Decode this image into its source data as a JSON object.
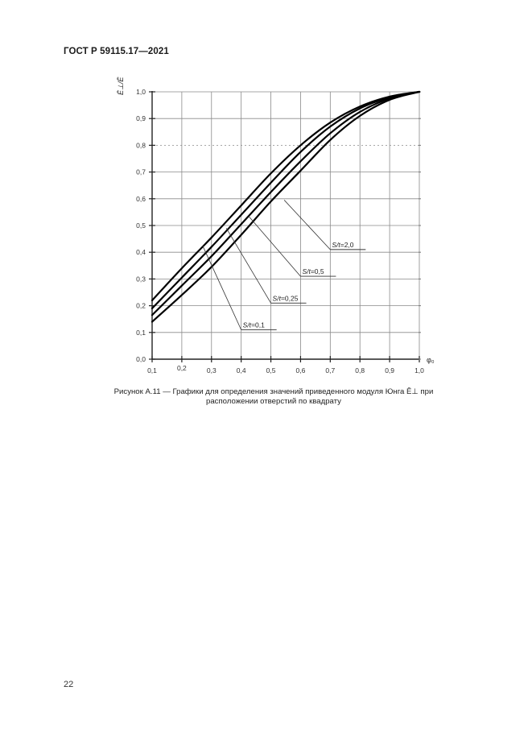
{
  "document": {
    "header": "ГОСТ Р 59115.17—2021",
    "page_number": "22"
  },
  "figure": {
    "caption_line1": "Рисунок А.11 — Графики для определения значений приведенного модуля Юнга Ê⊥ при",
    "caption_line2": "расположении отверстий по квадрату"
  },
  "chart_data": {
    "type": "line",
    "title": "",
    "xlabel": "φ₀",
    "ylabel": "Ē⊥/Ē",
    "xlim": [
      0.1,
      1.0
    ],
    "ylim": [
      0.0,
      1.0
    ],
    "grid": true,
    "legend_position": "leader-line annotations",
    "x_ticks": [
      "0,1",
      "0,2",
      "0,3",
      "0,4",
      "0,5",
      "0,6",
      "0,7",
      "0,8",
      "0,9",
      "1,0"
    ],
    "y_ticks": [
      "0,0",
      "0,1",
      "0,2",
      "0,3",
      "0,4",
      "0,5",
      "0,6",
      "0,7",
      "0,8",
      "0,9",
      "1,0"
    ],
    "x": [
      0.1,
      0.2,
      0.3,
      0.4,
      0.5,
      0.6,
      0.7,
      0.8,
      0.9,
      1.0
    ],
    "series": [
      {
        "name": "S/t = 2,0",
        "values": [
          0.22,
          0.34,
          0.455,
          0.575,
          0.695,
          0.8,
          0.885,
          0.945,
          0.982,
          1.0
        ]
      },
      {
        "name": "S/t = 0,5",
        "values": [
          0.19,
          0.305,
          0.42,
          0.54,
          0.66,
          0.775,
          0.87,
          0.938,
          0.979,
          1.0
        ]
      },
      {
        "name": "S/t = 0,25",
        "values": [
          0.165,
          0.275,
          0.385,
          0.505,
          0.625,
          0.74,
          0.845,
          0.925,
          0.975,
          1.0
        ]
      },
      {
        "name": "S/t = 0,1",
        "values": [
          0.14,
          0.24,
          0.345,
          0.465,
          0.59,
          0.705,
          0.82,
          0.91,
          0.97,
          1.0
        ]
      }
    ],
    "annotations": [
      {
        "label": "S/t = 2,0",
        "label_x": 0.7,
        "label_y": 0.41,
        "points_to": [
          0.545,
          0.595
        ]
      },
      {
        "label": "S/t = 0,5",
        "label_x": 0.6,
        "label_y": 0.31,
        "points_to": [
          0.425,
          0.535
        ]
      },
      {
        "label": "S/t = 0,25",
        "label_x": 0.5,
        "label_y": 0.21,
        "points_to": [
          0.35,
          0.49
        ]
      },
      {
        "label": "S/t = 0,1",
        "label_x": 0.4,
        "label_y": 0.11,
        "points_to": [
          0.27,
          0.425
        ]
      }
    ]
  }
}
